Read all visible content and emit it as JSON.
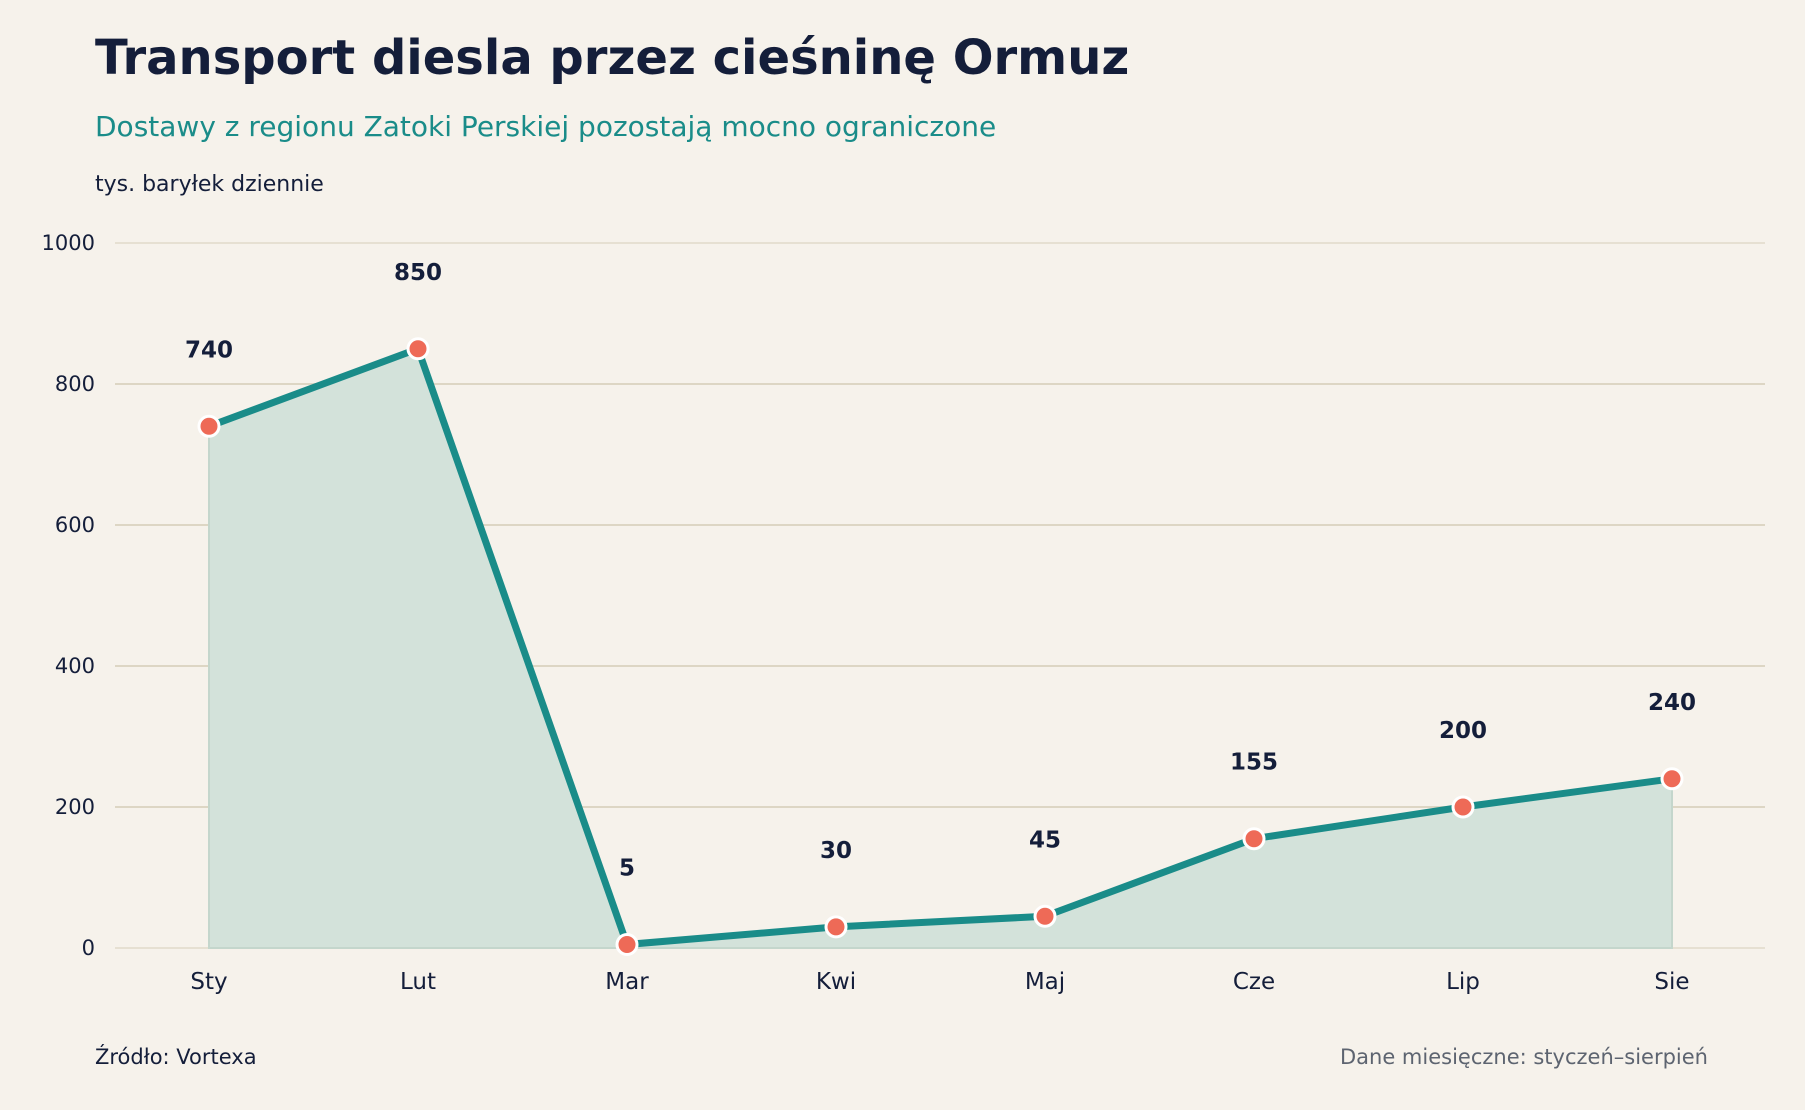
{
  "header": {
    "title": "Transport diesla przez cieśninę Ormuz",
    "subtitle": "Dostawy z regionu Zatoki Perskiej pozostają mocno ograniczone",
    "unit_label": "tys. baryłek dziennie"
  },
  "footer": {
    "source": "Źródło: Vortexa",
    "note": "Dane miesięczne: styczeń–sierpień"
  },
  "colors": {
    "background": "#f6f2eb",
    "line": "#1a8c89",
    "area": "#d3e2da",
    "marker": "#ee6a57",
    "grid": "#ddd6c4",
    "text": "#141e3a"
  },
  "chart_data": {
    "type": "area",
    "title": "Transport diesla przez cieśninę Ormuz",
    "subtitle": "Dostawy z regionu Zatoki Perskiej pozostają mocno ograniczone",
    "ylabel": "tys. baryłek dziennie",
    "xlabel": "",
    "categories": [
      "Sty",
      "Lut",
      "Mar",
      "Kwi",
      "Maj",
      "Cze",
      "Lip",
      "Sie"
    ],
    "values": [
      740,
      850,
      5,
      30,
      45,
      155,
      200,
      240
    ],
    "data_labels": [
      "740",
      "850",
      "5",
      "30",
      "45",
      "155",
      "200",
      "240"
    ],
    "ylim": [
      0,
      1000
    ],
    "yticks": [
      0,
      200,
      400,
      600,
      800,
      1000
    ],
    "grid": "horizontal",
    "legend": "none"
  }
}
